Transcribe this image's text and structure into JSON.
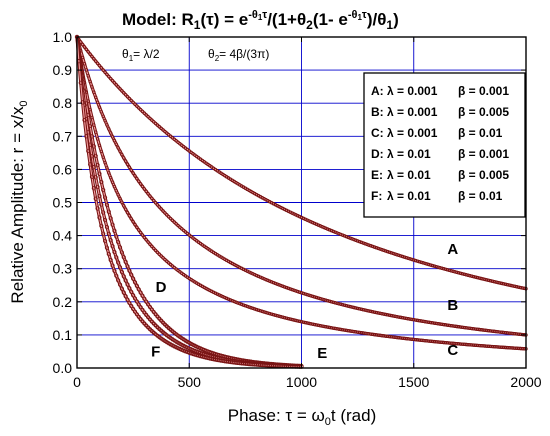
{
  "chart_data": {
    "type": "scatter",
    "title": {
      "prefix": "Model: R",
      "prefix_sub": "1",
      "arg": "(τ) = e",
      "sup1": "-θ",
      "sup1_sub": "1",
      "sup1_end": "τ",
      "mid": "/(1+θ",
      "mid_sub": "2",
      "mid2": "(1- e",
      "sup2": "-θ",
      "sup2_sub": "1",
      "sup2_end": "τ",
      "end": ")/θ",
      "end_sub": "1",
      "close": ")"
    },
    "subtitle": {
      "theta1_sym": "θ",
      "theta1_sub": "1",
      "theta1_def": "= λ/2",
      "theta2_sym": "θ",
      "theta2_sub": "2",
      "theta2_def": "= 4β/(3π)"
    },
    "xlabel": {
      "main": "Phase: τ = ω",
      "sub": "0",
      "end": "t   (rad)"
    },
    "ylabel": {
      "main": "Relative Amplitude: r = x/x",
      "sub": "0"
    },
    "xlim": [
      0,
      2000
    ],
    "ylim": [
      0,
      1.0
    ],
    "xticks": [
      0,
      500,
      1000,
      1500,
      2000
    ],
    "yticks": [
      0.0,
      0.1,
      0.2,
      0.3,
      0.4,
      0.5,
      0.6,
      0.7,
      0.8,
      0.9,
      1.0
    ],
    "grid": true,
    "legend_position": "top-right",
    "legend": [
      {
        "label": "A:",
        "lambda": "λ = 0.001",
        "beta": "β = 0.001"
      },
      {
        "label": "B:",
        "lambda": "λ = 0.001",
        "beta": "β = 0.005"
      },
      {
        "label": "C:",
        "lambda": "λ = 0.001",
        "beta": "β = 0.01"
      },
      {
        "label": "D:",
        "lambda": "λ = 0.01",
        "beta": "β = 0.001"
      },
      {
        "label": "E:",
        "lambda": "λ = 0.01",
        "beta": "β = 0.005"
      },
      {
        "label": "F:",
        "lambda": "λ = 0.01",
        "beta": "β = 0.01"
      }
    ],
    "series": [
      {
        "name": "A",
        "lambda": 0.001,
        "beta": 0.001,
        "x_max": 2000
      },
      {
        "name": "B",
        "lambda": 0.001,
        "beta": 0.005,
        "x_max": 2000
      },
      {
        "name": "C",
        "lambda": 0.001,
        "beta": 0.01,
        "x_max": 2000
      },
      {
        "name": "D",
        "lambda": 0.01,
        "beta": 0.001,
        "x_max": 1000
      },
      {
        "name": "E",
        "lambda": 0.01,
        "beta": 0.005,
        "x_max": 1000
      },
      {
        "name": "F",
        "lambda": 0.01,
        "beta": 0.01,
        "x_max": 1000
      }
    ],
    "curve_labels": [
      {
        "text": "A",
        "x": 1650,
        "y": 0.345
      },
      {
        "text": "B",
        "x": 1650,
        "y": 0.175
      },
      {
        "text": "C",
        "x": 1650,
        "y": 0.04
      },
      {
        "text": "D",
        "x": 350,
        "y": 0.23
      },
      {
        "text": "E",
        "x": 1070,
        "y": 0.03
      },
      {
        "text": "F",
        "x": 330,
        "y": 0.035
      }
    ],
    "colors": {
      "curve": "#7a1515",
      "curve_highlight": "#f2a0a0",
      "grid": "#0000cc",
      "frame": "#000000"
    }
  }
}
